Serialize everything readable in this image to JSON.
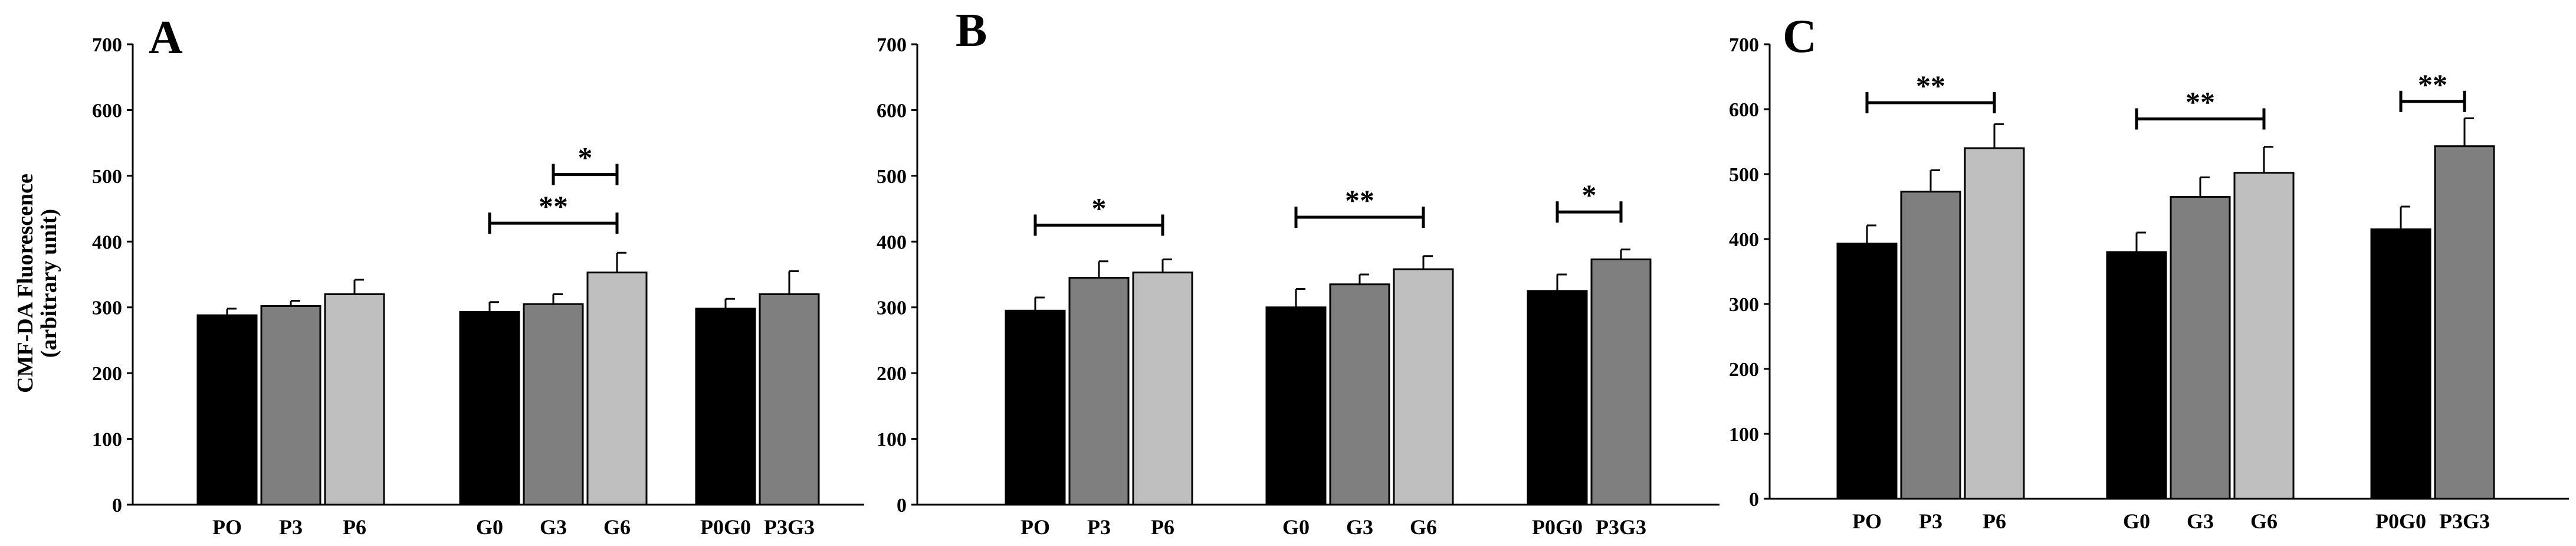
{
  "y_axis_label": {
    "line1": "CMF-DA Fluorescence",
    "line2": "(arbitrary unit)"
  },
  "colors": {
    "P0": "#000000",
    "P3": "#7f7f7f",
    "P6": "#bfbfbf",
    "G0": "#000000",
    "G3": "#7f7f7f",
    "G6": "#bfbfbf",
    "P0G0": "#000000",
    "P3G3": "#7f7f7f"
  },
  "chart_data": [
    {
      "type": "bar",
      "panel": "A",
      "ylim": [
        0,
        700
      ],
      "yticks": [
        0,
        100,
        200,
        300,
        400,
        500,
        600,
        700
      ],
      "groups": [
        {
          "bars": [
            {
              "label": "PO",
              "key": "P0",
              "value": 288,
              "error": 10
            },
            {
              "label": "P3",
              "key": "P3",
              "value": 302,
              "error": 8
            },
            {
              "label": "P6",
              "key": "P6",
              "value": 320,
              "error": 22
            }
          ]
        },
        {
          "bars": [
            {
              "label": "G0",
              "key": "G0",
              "value": 293,
              "error": 15
            },
            {
              "label": "G3",
              "key": "G3",
              "value": 305,
              "error": 15
            },
            {
              "label": "G6",
              "key": "G6",
              "value": 353,
              "error": 30
            }
          ]
        },
        {
          "bars": [
            {
              "label": "P0G0",
              "key": "P0G0",
              "value": 298,
              "error": 15
            },
            {
              "label": "P3G3",
              "key": "P3G3",
              "value": 320,
              "error": 35
            }
          ]
        }
      ],
      "significance": [
        {
          "group": 1,
          "from": 0,
          "to": 2,
          "y": 428,
          "label": "**"
        },
        {
          "group": 1,
          "from": 1,
          "to": 2,
          "y": 502,
          "label": "*"
        }
      ]
    },
    {
      "type": "bar",
      "panel": "B",
      "ylim": [
        0,
        700
      ],
      "yticks": [
        0,
        100,
        200,
        300,
        400,
        500,
        600,
        700
      ],
      "groups": [
        {
          "bars": [
            {
              "label": "PO",
              "key": "P0",
              "value": 295,
              "error": 20
            },
            {
              "label": "P3",
              "key": "P3",
              "value": 345,
              "error": 25
            },
            {
              "label": "P6",
              "key": "P6",
              "value": 353,
              "error": 20
            }
          ]
        },
        {
          "bars": [
            {
              "label": "G0",
              "key": "G0",
              "value": 300,
              "error": 28
            },
            {
              "label": "G3",
              "key": "G3",
              "value": 335,
              "error": 15
            },
            {
              "label": "G6",
              "key": "G6",
              "value": 358,
              "error": 20
            }
          ]
        },
        {
          "bars": [
            {
              "label": "P0G0",
              "key": "P0G0",
              "value": 325,
              "error": 25
            },
            {
              "label": "P3G3",
              "key": "P3G3",
              "value": 373,
              "error": 15
            }
          ]
        }
      ],
      "significance": [
        {
          "group": 0,
          "from": 0,
          "to": 2,
          "y": 425,
          "label": "*"
        },
        {
          "group": 1,
          "from": 0,
          "to": 2,
          "y": 437,
          "label": "**"
        },
        {
          "group": 2,
          "from": 0,
          "to": 1,
          "y": 445,
          "label": "*"
        }
      ]
    },
    {
      "type": "bar",
      "panel": "C",
      "ylim": [
        0,
        700
      ],
      "yticks": [
        0,
        100,
        200,
        300,
        400,
        500,
        600,
        700
      ],
      "groups": [
        {
          "bars": [
            {
              "label": "PO",
              "key": "P0",
              "value": 393,
              "error": 28
            },
            {
              "label": "P3",
              "key": "P3",
              "value": 473,
              "error": 33
            },
            {
              "label": "P6",
              "key": "P6",
              "value": 540,
              "error": 37
            }
          ]
        },
        {
          "bars": [
            {
              "label": "G0",
              "key": "G0",
              "value": 380,
              "error": 30
            },
            {
              "label": "G3",
              "key": "G3",
              "value": 465,
              "error": 30
            },
            {
              "label": "G6",
              "key": "G6",
              "value": 502,
              "error": 40
            }
          ]
        },
        {
          "bars": [
            {
              "label": "P0G0",
              "key": "P0G0",
              "value": 415,
              "error": 35
            },
            {
              "label": "P3G3",
              "key": "P3G3",
              "value": 543,
              "error": 43
            }
          ]
        }
      ],
      "significance": [
        {
          "group": 0,
          "from": 0,
          "to": 2,
          "y": 610,
          "label": "**"
        },
        {
          "group": 1,
          "from": 0,
          "to": 2,
          "y": 585,
          "label": "**"
        },
        {
          "group": 2,
          "from": 0,
          "to": 1,
          "y": 612,
          "label": "**"
        }
      ]
    }
  ]
}
